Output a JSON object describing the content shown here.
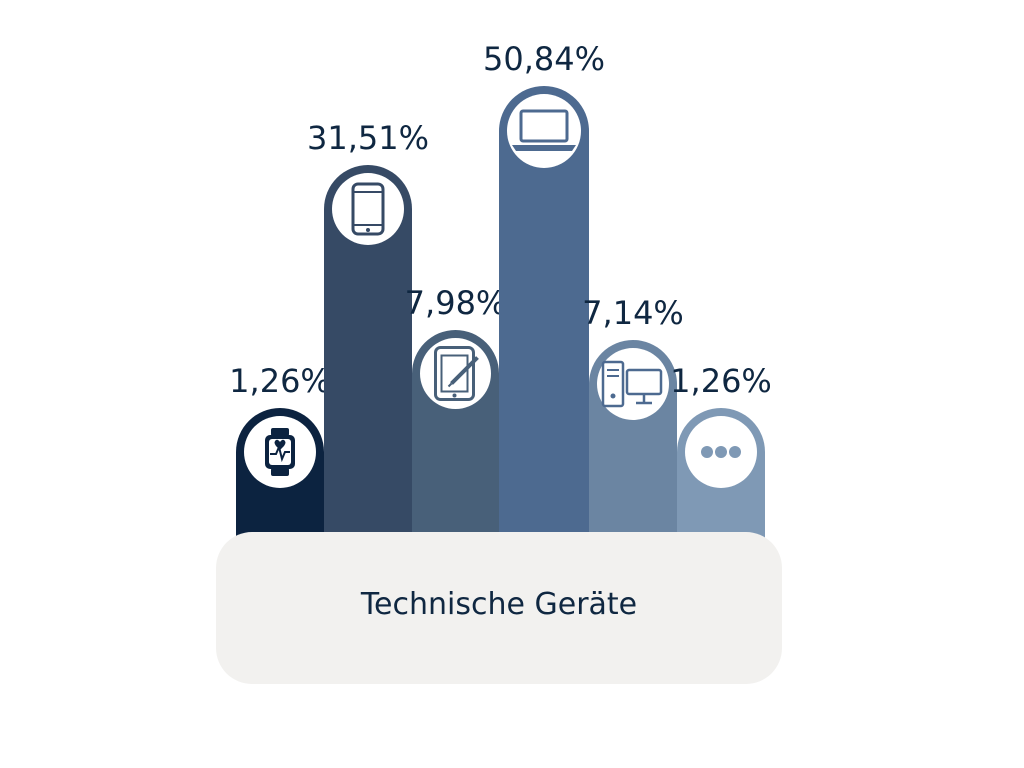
{
  "chart_data": {
    "type": "bar",
    "title": "Technische Geräte",
    "categories": [
      "Smartwatch",
      "Smartphone",
      "Tablet",
      "Laptop",
      "Desktop-PC",
      "Sonstige"
    ],
    "values": [
      1.26,
      31.51,
      7.98,
      50.84,
      7.14,
      1.26
    ],
    "value_labels": [
      "1,26%",
      "31,51%",
      "7,98%",
      "50,84%",
      "7,14%",
      "1,26%"
    ],
    "icons": [
      "smartwatch-icon",
      "smartphone-icon",
      "tablet-icon",
      "laptop-icon",
      "desktop-pc-icon",
      "more-dots-icon"
    ],
    "colors": [
      "#0c2340",
      "#364a65",
      "#486079",
      "#4d6a90",
      "#6b85a2",
      "#7f99b5"
    ],
    "base_color": "#f2f1ef",
    "text_color": "#0f2741"
  }
}
